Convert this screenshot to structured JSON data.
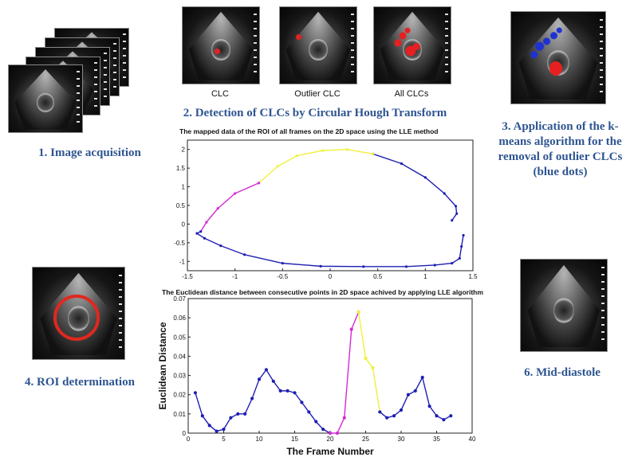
{
  "steps": {
    "s1": "1. Image acquisition",
    "s2": "2. Detection of CLCs by Circular Hough Transform",
    "s3_lines": [
      "3. Application of the k-",
      "means algorithm for the",
      "removal of outlier CLCs",
      "(blue dots)"
    ],
    "s4": "4. ROI determination",
    "s6": "6. Mid-diastole"
  },
  "thumbnails": {
    "clc": "CLC",
    "outlier": "Outlier CLC",
    "all": "All CLCs"
  },
  "colors": {
    "caption": "#2e5591",
    "series_blue": "#1f1fb4",
    "series_magenta": "#d42ad4",
    "series_yellow": "#f0f03c",
    "roi_ring": "#e0281e",
    "clc_red": "#e62020",
    "clc_blue": "#1e32d2"
  },
  "chart_data": [
    {
      "type": "line",
      "title": "The mapped data of the ROI of all frames on the 2D space using the LLE method",
      "xlabel": "",
      "ylabel": "",
      "xlim": [
        -1.5,
        1.5
      ],
      "ylim": [
        -1.25,
        2.25
      ],
      "xticks": [
        "-1.5",
        "-1",
        "-0.5",
        "0",
        "0.5",
        "1",
        "1.5"
      ],
      "yticks": [
        "-1",
        "-0.5",
        "0",
        "0.5",
        "1",
        "1.5",
        "2"
      ],
      "grid": false,
      "segments": [
        {
          "color": "blue",
          "points": [
            [
              1.28,
              0.1
            ],
            [
              1.33,
              0.28
            ],
            [
              1.32,
              0.48
            ],
            [
              1.2,
              0.82
            ],
            [
              1.0,
              1.25
            ],
            [
              0.75,
              1.62
            ],
            [
              0.45,
              1.88
            ]
          ]
        },
        {
          "color": "yellow",
          "points": [
            [
              0.45,
              1.88
            ],
            [
              0.18,
              2.0
            ],
            [
              -0.08,
              1.97
            ],
            [
              -0.35,
              1.83
            ],
            [
              -0.55,
              1.55
            ],
            [
              -0.75,
              1.1
            ]
          ]
        },
        {
          "color": "magenta",
          "points": [
            [
              -0.75,
              1.1
            ],
            [
              -1.0,
              0.82
            ],
            [
              -1.18,
              0.42
            ],
            [
              -1.3,
              0.05
            ],
            [
              -1.36,
              -0.2
            ]
          ]
        },
        {
          "color": "blue",
          "points": [
            [
              -1.36,
              -0.2
            ],
            [
              -1.4,
              -0.25
            ],
            [
              -1.32,
              -0.38
            ],
            [
              -1.15,
              -0.58
            ],
            [
              -0.9,
              -0.82
            ],
            [
              -0.5,
              -1.05
            ],
            [
              -0.1,
              -1.13
            ],
            [
              0.35,
              -1.14
            ],
            [
              0.8,
              -1.14
            ],
            [
              1.1,
              -1.1
            ],
            [
              1.28,
              -1.05
            ],
            [
              1.36,
              -0.92
            ],
            [
              1.38,
              -0.6
            ],
            [
              1.4,
              -0.3
            ]
          ]
        }
      ]
    },
    {
      "type": "line",
      "title": "The Euclidean distance between consecutive points in 2D space achived by applying LLE algorithm",
      "xlabel": "The Frame Number",
      "ylabel": "Euclidean Distance",
      "xlim": [
        0,
        40
      ],
      "ylim": [
        0,
        0.07
      ],
      "xticks": [
        "0",
        "5",
        "10",
        "15",
        "20",
        "25",
        "30",
        "35",
        "40"
      ],
      "yticks": [
        "0",
        "0.01",
        "0.02",
        "0.03",
        "0.04",
        "0.05",
        "0.06",
        "0.07"
      ],
      "grid": false,
      "segments": [
        {
          "color": "blue",
          "points": [
            [
              1,
              0.021
            ],
            [
              2,
              0.009
            ],
            [
              3,
              0.004
            ],
            [
              4,
              0.001
            ],
            [
              5,
              0.002
            ],
            [
              6,
              0.008
            ],
            [
              7,
              0.01
            ],
            [
              8,
              0.01
            ],
            [
              9,
              0.018
            ],
            [
              10,
              0.028
            ],
            [
              11,
              0.033
            ],
            [
              12,
              0.027
            ],
            [
              13,
              0.022
            ],
            [
              14,
              0.022
            ],
            [
              15,
              0.021
            ],
            [
              16,
              0.016
            ],
            [
              17,
              0.011
            ],
            [
              18,
              0.006
            ],
            [
              19,
              0.002
            ],
            [
              20,
              0.0
            ]
          ]
        },
        {
          "color": "magenta",
          "points": [
            [
              20,
              0.0
            ],
            [
              21,
              0.0
            ],
            [
              22,
              0.008
            ],
            [
              23,
              0.054
            ],
            [
              24,
              0.063
            ]
          ]
        },
        {
          "color": "yellow",
          "points": [
            [
              24,
              0.063
            ],
            [
              25,
              0.039
            ],
            [
              26,
              0.034
            ],
            [
              27,
              0.011
            ]
          ]
        },
        {
          "color": "blue",
          "points": [
            [
              27,
              0.011
            ],
            [
              28,
              0.008
            ],
            [
              29,
              0.009
            ],
            [
              30,
              0.012
            ],
            [
              31,
              0.02
            ],
            [
              32,
              0.022
            ],
            [
              33,
              0.029
            ],
            [
              34,
              0.014
            ],
            [
              35,
              0.009
            ],
            [
              36,
              0.007
            ],
            [
              37,
              0.009
            ]
          ]
        }
      ]
    }
  ]
}
